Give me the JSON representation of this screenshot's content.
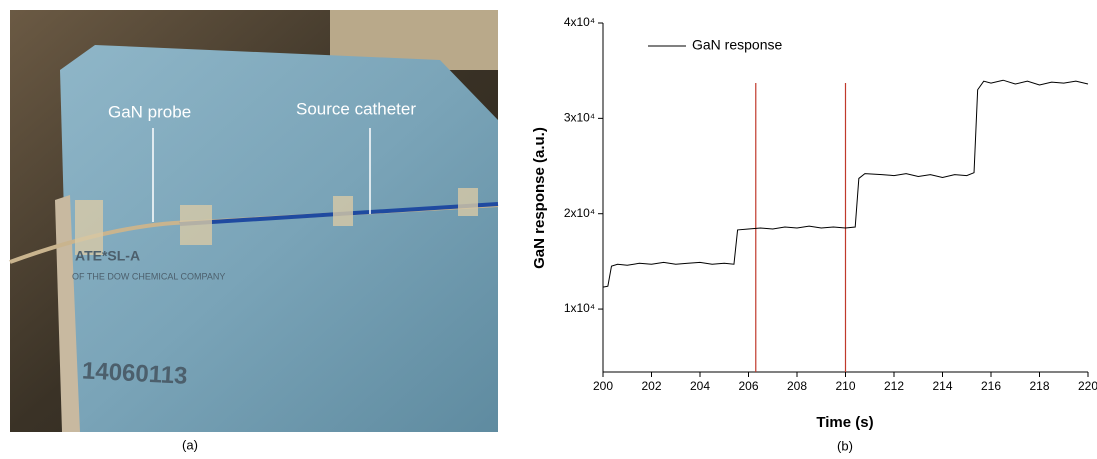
{
  "photo": {
    "probe_label": "GaN probe",
    "catheter_label": "Source catheter",
    "board_text_1": "ATE*SL-A",
    "board_text_2": "OF THE DOW CHEMICAL COMPANY",
    "board_text_3": "14060113",
    "caption": "(a)"
  },
  "chart_data": {
    "type": "line",
    "caption": "(b)",
    "xlabel": "Time (s)",
    "ylabel": "GaN response (a.u.)",
    "x": [
      200.0,
      200.2,
      200.35,
      200.6,
      201,
      201.5,
      202,
      202.5,
      203,
      203.5,
      204,
      204.5,
      205,
      205.4,
      205.55,
      206,
      206.5,
      207,
      207.5,
      208,
      208.5,
      209,
      209.5,
      210,
      210.4,
      210.55,
      210.8,
      211.5,
      212,
      212.5,
      213,
      213.5,
      214,
      214.5,
      215,
      215.3,
      215.45,
      215.7,
      216,
      216.5,
      217,
      217.5,
      218,
      218.5,
      219,
      219.5,
      220
    ],
    "series": [
      {
        "name": "GaN response",
        "color": "#000000",
        "values": [
          12300,
          12400,
          14500,
          14700,
          14600,
          14800,
          14700,
          14900,
          14700,
          14800,
          14900,
          14700,
          14800,
          14700,
          18300,
          18400,
          18500,
          18400,
          18600,
          18500,
          18700,
          18500,
          18600,
          18500,
          18600,
          23700,
          24200,
          24100,
          24000,
          24200,
          23900,
          24100,
          23800,
          24100,
          24000,
          24300,
          33000,
          33900,
          33700,
          34000,
          33600,
          33900,
          33500,
          33800,
          33700,
          33900,
          33600
        ]
      }
    ],
    "vlines": [
      206.3,
      210.0
    ],
    "vline_color": "#c0392b",
    "xlim": [
      200,
      220
    ],
    "xticks": [
      200,
      202,
      204,
      206,
      208,
      210,
      212,
      214,
      216,
      218,
      220
    ],
    "ylim": [
      3400,
      40000
    ],
    "yticks": [
      {
        "value": 10000,
        "label": "1x10⁴"
      },
      {
        "value": 20000,
        "label": "2x10⁴"
      },
      {
        "value": 30000,
        "label": "3x10⁴"
      },
      {
        "value": 40000,
        "label": "4x10⁴"
      }
    ],
    "legend": "upper left"
  }
}
